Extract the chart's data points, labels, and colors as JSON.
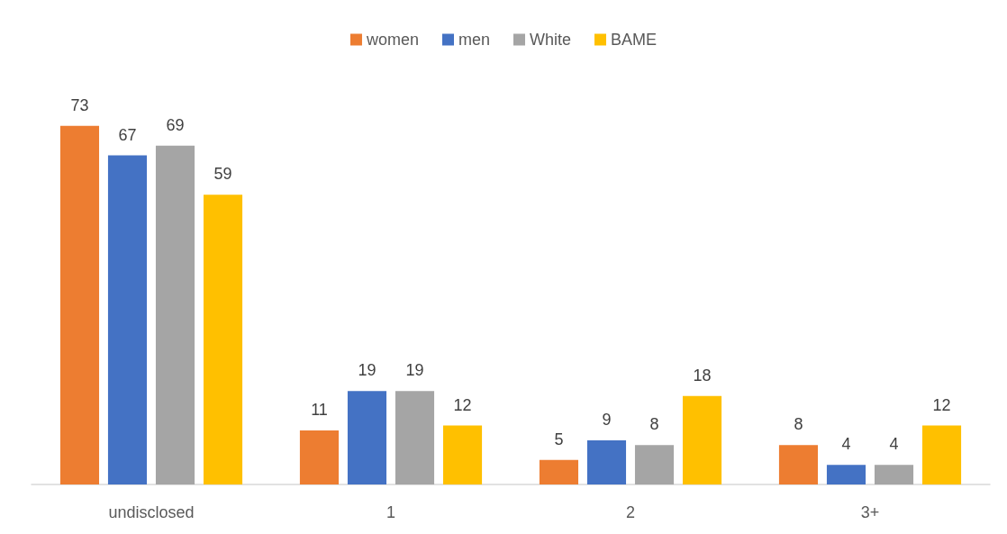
{
  "chart_data": {
    "type": "bar",
    "categories": [
      "undisclosed",
      "1",
      "2",
      "3+"
    ],
    "series": [
      {
        "name": "women",
        "color": "#ed7d31",
        "values": [
          73,
          11,
          5,
          8
        ]
      },
      {
        "name": "men",
        "color": "#4472c4",
        "values": [
          67,
          19,
          9,
          4
        ]
      },
      {
        "name": "White",
        "color": "#a5a5a5",
        "values": [
          69,
          19,
          8,
          4
        ]
      },
      {
        "name": "BAME",
        "color": "#ffc000",
        "values": [
          59,
          12,
          18,
          12
        ]
      }
    ],
    "data_labels": true,
    "legend": "top",
    "grid": false
  }
}
